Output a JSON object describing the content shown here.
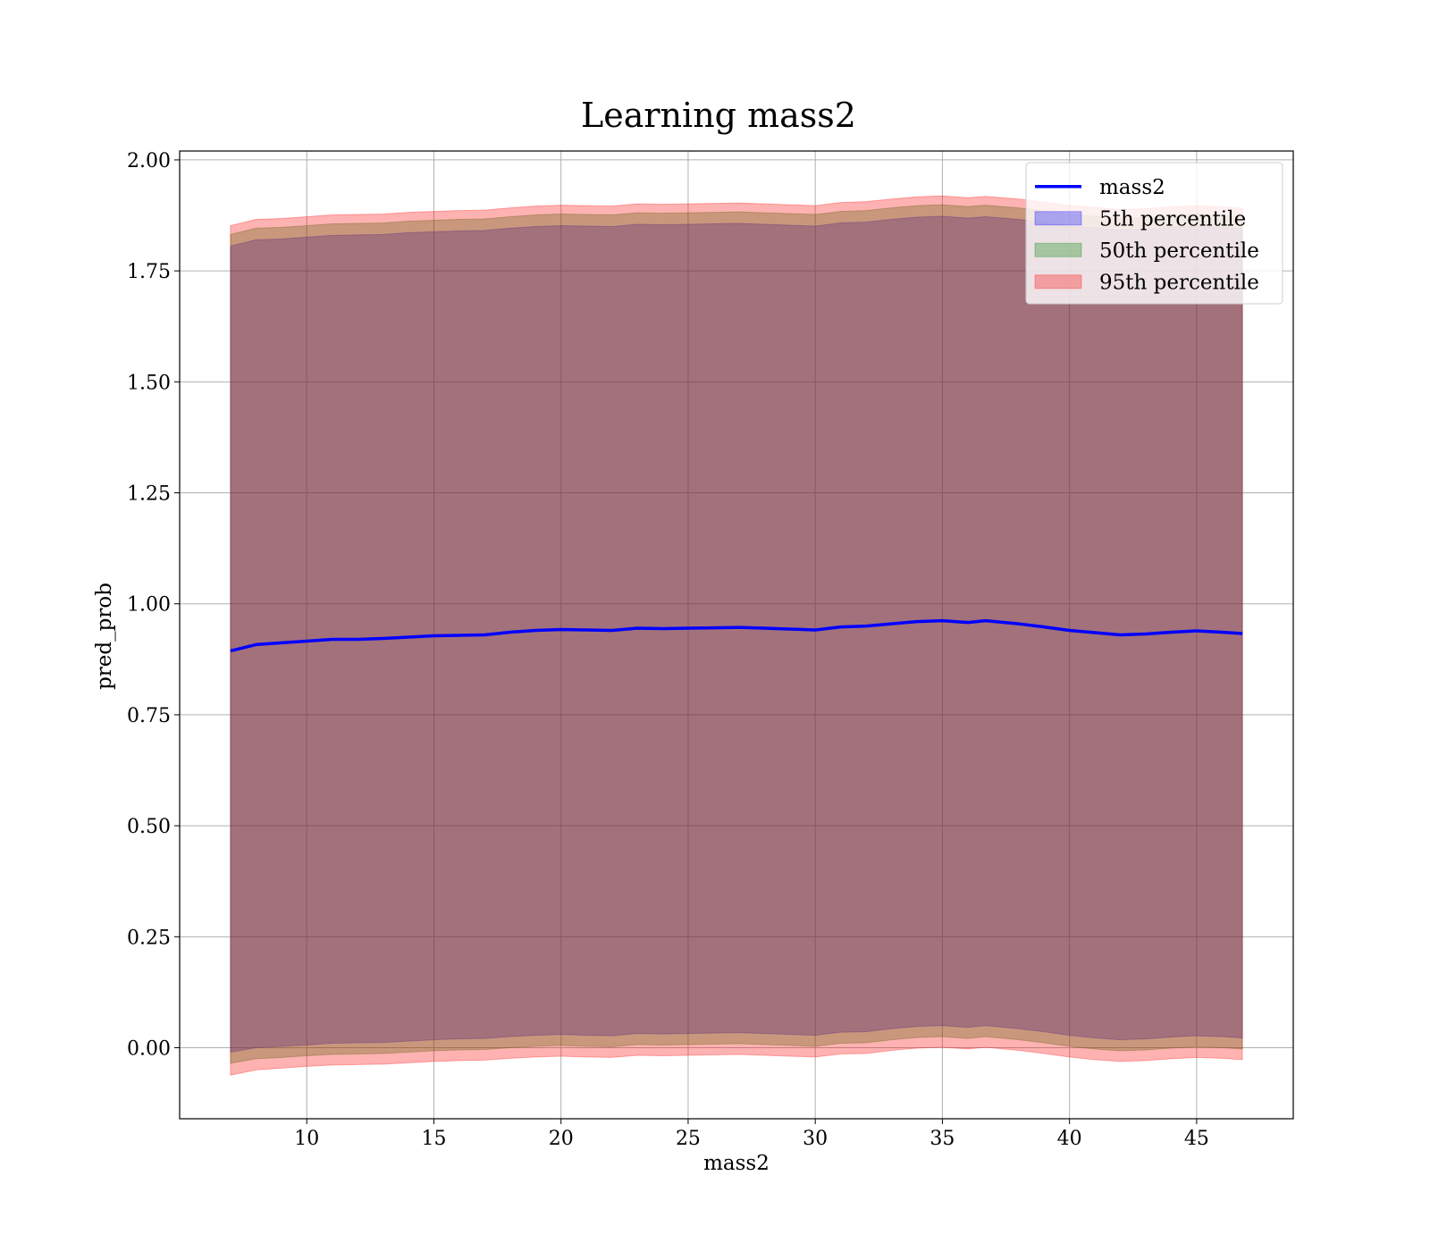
{
  "chart_data": {
    "type": "line",
    "title": "Learning mass2",
    "xlabel": "mass2",
    "ylabel": "pred_prob",
    "xlim": [
      5.0,
      48.8
    ],
    "ylim": [
      -0.16,
      2.02
    ],
    "xticks": [
      10,
      15,
      20,
      25,
      30,
      35,
      40,
      45
    ],
    "yticks": [
      0.0,
      0.25,
      0.5,
      0.75,
      1.0,
      1.25,
      1.5,
      1.75,
      2.0
    ],
    "xtick_labels": [
      "10",
      "15",
      "20",
      "25",
      "30",
      "35",
      "40",
      "45"
    ],
    "ytick_labels": [
      "0.00",
      "0.25",
      "0.50",
      "0.75",
      "1.00",
      "1.25",
      "1.50",
      "1.75",
      "2.00"
    ],
    "grid": true,
    "legend_position": "top-right",
    "x": [
      7.0,
      8.0,
      9.0,
      10.0,
      11.0,
      12.0,
      13.0,
      14.0,
      15.0,
      16.0,
      17.0,
      18.0,
      19.0,
      20.0,
      21.0,
      22.0,
      23.0,
      24.0,
      25.0,
      26.0,
      27.0,
      28.0,
      29.0,
      30.0,
      31.0,
      32.0,
      33.0,
      34.0,
      35.0,
      36.0,
      36.7,
      38.0,
      39.0,
      40.0,
      41.0,
      42.0,
      43.0,
      44.0,
      45.0,
      46.0,
      46.8
    ],
    "series": [
      {
        "name": "mass2",
        "style": "line",
        "color": "#0000ff",
        "values": [
          0.894,
          0.908,
          0.912,
          0.916,
          0.92,
          0.92,
          0.922,
          0.925,
          0.928,
          0.929,
          0.93,
          0.936,
          0.94,
          0.942,
          0.941,
          0.94,
          0.945,
          0.944,
          0.945,
          0.946,
          0.947,
          0.945,
          0.943,
          0.941,
          0.948,
          0.95,
          0.955,
          0.96,
          0.962,
          0.958,
          0.962,
          0.955,
          0.948,
          0.94,
          0.935,
          0.93,
          0.932,
          0.936,
          0.939,
          0.936,
          0.933
        ]
      },
      {
        "name": "5th percentile",
        "style": "band",
        "color": "#0000ff",
        "opacity": 0.3,
        "lower": [
          -0.01,
          0.0,
          0.003,
          0.006,
          0.01,
          0.011,
          0.012,
          0.015,
          0.018,
          0.02,
          0.021,
          0.025,
          0.028,
          0.03,
          0.028,
          0.027,
          0.032,
          0.031,
          0.032,
          0.033,
          0.034,
          0.032,
          0.03,
          0.028,
          0.035,
          0.036,
          0.043,
          0.048,
          0.05,
          0.046,
          0.05,
          0.043,
          0.036,
          0.028,
          0.022,
          0.018,
          0.02,
          0.024,
          0.027,
          0.025,
          0.022
        ],
        "upper": [
          1.806,
          1.82,
          1.822,
          1.826,
          1.83,
          1.831,
          1.832,
          1.836,
          1.838,
          1.84,
          1.841,
          1.846,
          1.85,
          1.852,
          1.851,
          1.85,
          1.855,
          1.854,
          1.855,
          1.856,
          1.857,
          1.855,
          1.853,
          1.851,
          1.858,
          1.86,
          1.866,
          1.871,
          1.873,
          1.869,
          1.872,
          1.866,
          1.859,
          1.851,
          1.847,
          1.842,
          1.844,
          1.848,
          1.851,
          1.848,
          1.845
        ]
      },
      {
        "name": "50th percentile",
        "style": "band",
        "color": "#008000",
        "opacity": 0.3,
        "lower": [
          -0.035,
          -0.025,
          -0.022,
          -0.018,
          -0.015,
          -0.014,
          -0.013,
          -0.01,
          -0.007,
          -0.005,
          -0.004,
          0.0,
          0.003,
          0.005,
          0.003,
          0.002,
          0.007,
          0.006,
          0.007,
          0.008,
          0.009,
          0.007,
          0.005,
          0.003,
          0.01,
          0.011,
          0.018,
          0.023,
          0.025,
          0.021,
          0.025,
          0.018,
          0.011,
          0.003,
          -0.003,
          -0.007,
          -0.005,
          -0.001,
          0.002,
          0.0,
          -0.003
        ],
        "upper": [
          1.832,
          1.846,
          1.848,
          1.852,
          1.856,
          1.857,
          1.858,
          1.862,
          1.864,
          1.866,
          1.867,
          1.872,
          1.876,
          1.878,
          1.877,
          1.876,
          1.881,
          1.88,
          1.881,
          1.882,
          1.883,
          1.881,
          1.879,
          1.877,
          1.884,
          1.886,
          1.892,
          1.897,
          1.899,
          1.895,
          1.898,
          1.892,
          1.885,
          1.877,
          1.873,
          1.868,
          1.87,
          1.874,
          1.877,
          1.874,
          1.871
        ]
      },
      {
        "name": "95th percentile",
        "style": "band",
        "color": "#ff0000",
        "opacity": 0.3,
        "lower": [
          -0.062,
          -0.05,
          -0.046,
          -0.042,
          -0.039,
          -0.038,
          -0.037,
          -0.034,
          -0.031,
          -0.029,
          -0.028,
          -0.024,
          -0.021,
          -0.019,
          -0.021,
          -0.022,
          -0.017,
          -0.018,
          -0.017,
          -0.016,
          -0.015,
          -0.017,
          -0.019,
          -0.021,
          -0.014,
          -0.013,
          -0.006,
          -0.001,
          0.001,
          -0.003,
          0.001,
          -0.006,
          -0.013,
          -0.021,
          -0.027,
          -0.031,
          -0.029,
          -0.025,
          -0.022,
          -0.024,
          -0.027
        ],
        "upper": [
          1.852,
          1.866,
          1.868,
          1.872,
          1.876,
          1.877,
          1.878,
          1.882,
          1.884,
          1.886,
          1.887,
          1.892,
          1.896,
          1.898,
          1.897,
          1.896,
          1.901,
          1.9,
          1.901,
          1.902,
          1.903,
          1.901,
          1.899,
          1.897,
          1.904,
          1.906,
          1.912,
          1.917,
          1.919,
          1.915,
          1.918,
          1.912,
          1.905,
          1.897,
          1.893,
          1.888,
          1.89,
          1.894,
          1.897,
          1.894,
          1.891
        ]
      }
    ]
  }
}
